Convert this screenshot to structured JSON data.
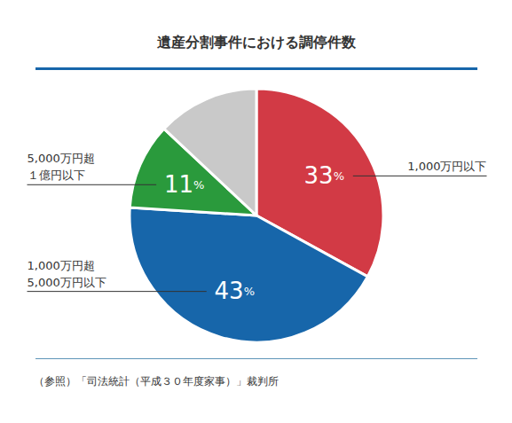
{
  "chart_data": {
    "type": "pie",
    "title": "遺産分割事件における調停件数",
    "categories": [
      "1,000万円以下",
      "1,000万円超\n5,000万円以下",
      "5,000万円超\n１億円以下",
      null
    ],
    "values": [
      33,
      43,
      11,
      13
    ],
    "value_labels": [
      "33%",
      "43%",
      "11%",
      null
    ],
    "colors": [
      "#d23a45",
      "#1766aa",
      "#2a9a3c",
      "#c9c9c9"
    ],
    "data_labels": true,
    "caption": "（参照）「司法統計（平成３０年度家事）」裁判所"
  }
}
